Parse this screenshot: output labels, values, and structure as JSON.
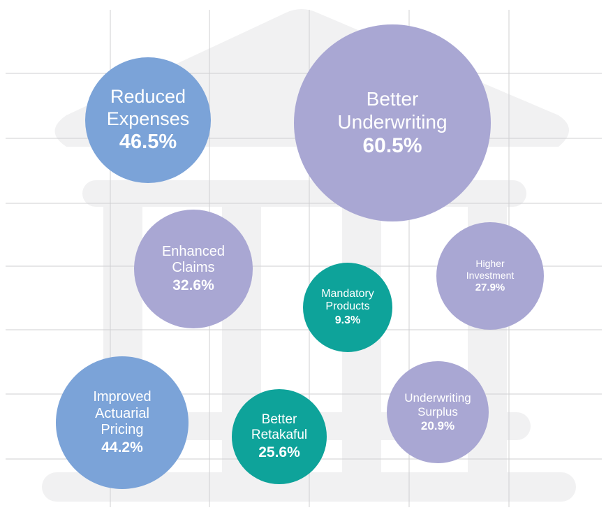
{
  "chart_data": {
    "type": "bubble",
    "categories": [
      "Reduced Expenses",
      "Better Underwriting",
      "Enhanced Claims",
      "Mandatory Products",
      "Higher Investment",
      "Improved Actuarial Pricing",
      "Better Retakaful",
      "Underwriting Surplus"
    ],
    "values": [
      46.5,
      60.5,
      32.6,
      9.3,
      27.9,
      44.2,
      25.6,
      20.9
    ],
    "value_labels": [
      "46.5%",
      "60.5%",
      "32.6%",
      "9.3%",
      "27.9%",
      "44.2%",
      "25.6%",
      "20.9%"
    ],
    "colors": [
      "#7ba3d8",
      "#a9a7d3",
      "#a9a7d3",
      "#0ea39a",
      "#a9a7d3",
      "#7ba3d8",
      "#0ea39a",
      "#a9a7d3"
    ]
  }
}
